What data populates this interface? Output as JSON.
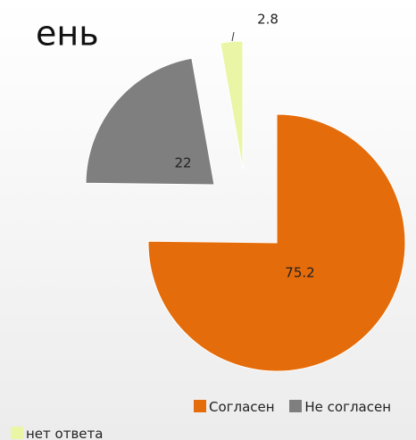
{
  "chart_data": {
    "type": "pie",
    "title": "ень",
    "categories": [
      "Согласен",
      "Не согласен",
      "нет ответа"
    ],
    "values": [
      75.2,
      22,
      2.8
    ],
    "colors": [
      "#e46c0a",
      "#7f7f7f",
      "#eaf5a6"
    ]
  }
}
